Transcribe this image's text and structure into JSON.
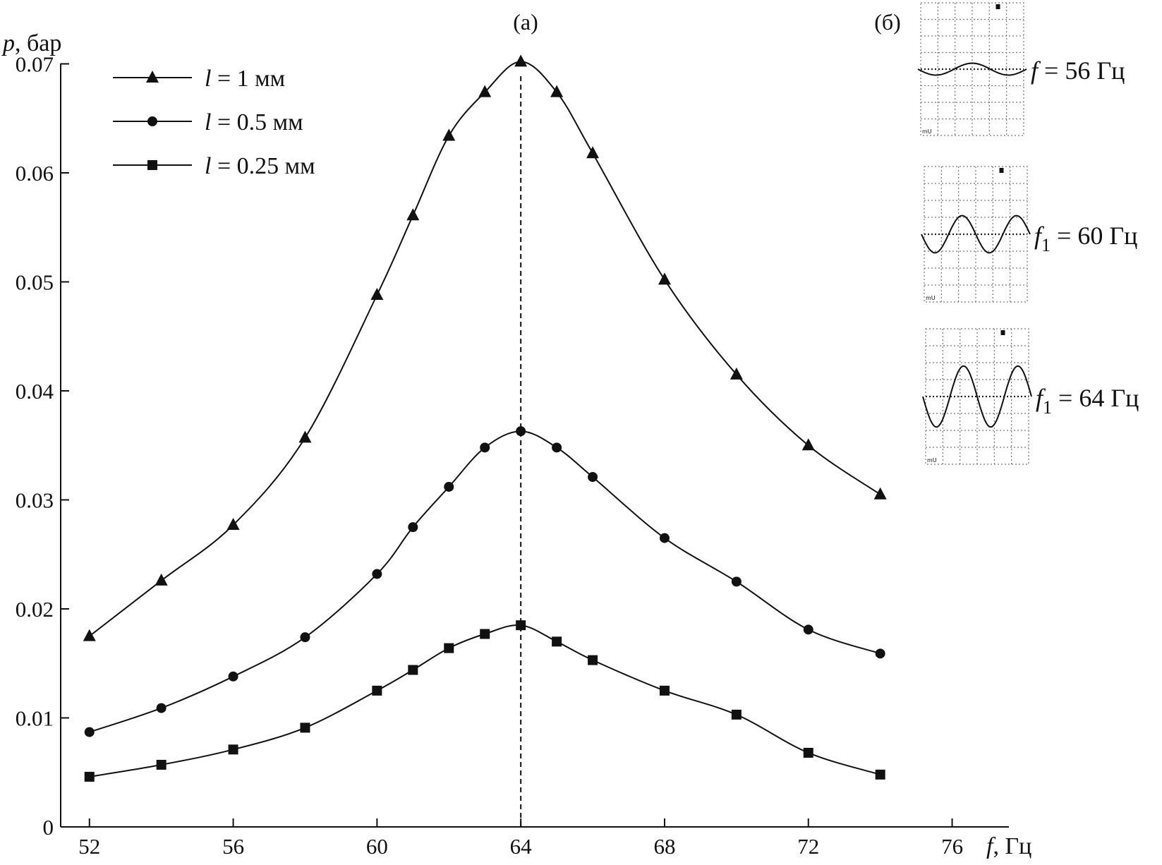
{
  "chart_data": {
    "type": "line",
    "panel_a_label": "(а)",
    "panel_b_label": "(б)",
    "ylabel_italic": "p",
    "ylabel_rest": ", бар",
    "xlabel_italic": "f",
    "xlabel_rest": ", Гц",
    "xlim": [
      51.2,
      77.5
    ],
    "ylim": [
      0,
      0.075
    ],
    "xticks": [
      52,
      56,
      60,
      64,
      68,
      72,
      76
    ],
    "yticks": [
      0,
      0.01,
      0.02,
      0.03,
      0.04,
      0.05,
      0.06,
      0.07
    ],
    "ytick_labels": [
      "0",
      "0.01",
      "0.02",
      "0.03",
      "0.04",
      "0.05",
      "0.06",
      "0.07"
    ],
    "resonance_line_x": 64,
    "legend_position": "top-left",
    "series": [
      {
        "name_italic": "l",
        "name_rest": " = 1 мм",
        "marker": "triangle",
        "x": [
          52,
          54,
          56,
          58,
          60,
          61,
          62,
          63,
          64,
          65,
          66,
          68,
          70,
          72,
          74
        ],
        "y": [
          0.0175,
          0.0226,
          0.0277,
          0.0357,
          0.0488,
          0.0561,
          0.0634,
          0.0674,
          0.0702,
          0.0674,
          0.0618,
          0.0502,
          0.0415,
          0.035,
          0.0305
        ]
      },
      {
        "name_italic": "l",
        "name_rest": " = 0.5 мм",
        "marker": "circle",
        "x": [
          52,
          54,
          56,
          58,
          60,
          61,
          62,
          63,
          64,
          65,
          66,
          68,
          70,
          72,
          74
        ],
        "y": [
          0.0087,
          0.0109,
          0.0138,
          0.0174,
          0.0232,
          0.0275,
          0.0312,
          0.0348,
          0.0363,
          0.0348,
          0.0321,
          0.0265,
          0.0225,
          0.0181,
          0.0159
        ]
      },
      {
        "name_italic": "l",
        "name_rest": " = 0.25 мм",
        "marker": "square",
        "x": [
          52,
          54,
          56,
          58,
          60,
          61,
          62,
          63,
          64,
          65,
          66,
          68,
          70,
          72,
          74
        ],
        "y": [
          0.0046,
          0.0057,
          0.0071,
          0.0091,
          0.0125,
          0.0144,
          0.0164,
          0.0177,
          0.0185,
          0.017,
          0.0153,
          0.0125,
          0.0103,
          0.0068,
          0.0048
        ]
      }
    ],
    "oscillograms": [
      {
        "label_italic": "f",
        "label_sub": "",
        "label_rest": " = 56 Гц",
        "relative_amplitude": 0.18,
        "cycles": 1.5,
        "corner_mark": "mU"
      },
      {
        "label_italic": "f",
        "label_sub": "1",
        "label_rest": " = 60 Гц",
        "relative_amplitude": 0.55,
        "cycles": 2,
        "corner_mark": "mU"
      },
      {
        "label_italic": "f",
        "label_sub": "1",
        "label_rest": " = 64 Гц",
        "relative_amplitude": 0.9,
        "cycles": 2,
        "corner_mark": "mU"
      }
    ]
  }
}
